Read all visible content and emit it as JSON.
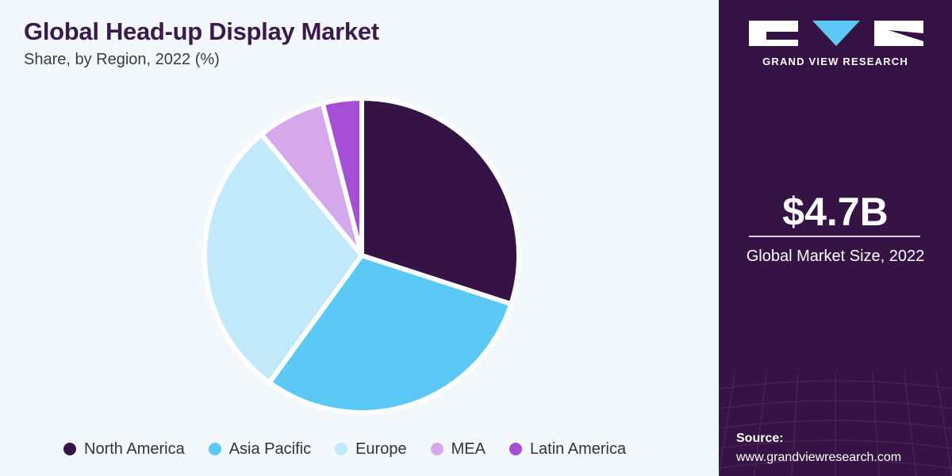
{
  "chart_data": {
    "type": "pie",
    "title": "Global Head-up Display Market",
    "subtitle": "Share, by Region, 2022 (%)",
    "categories": [
      "North America",
      "Asia Pacific",
      "Europe",
      "MEA",
      "Latin America"
    ],
    "values": [
      30,
      30,
      29,
      7,
      4
    ],
    "colors": [
      "#351344",
      "#5bc8f5",
      "#c2e9fa",
      "#d4a8ea",
      "#a64fd6"
    ],
    "legend_position": "bottom"
  },
  "sidebar": {
    "brand": "GRAND VIEW RESEARCH",
    "kpi_value": "$4.7B",
    "kpi_label": "Global Market Size, 2022",
    "source_label": "Source:",
    "source_url": "www.grandviewresearch.com"
  }
}
